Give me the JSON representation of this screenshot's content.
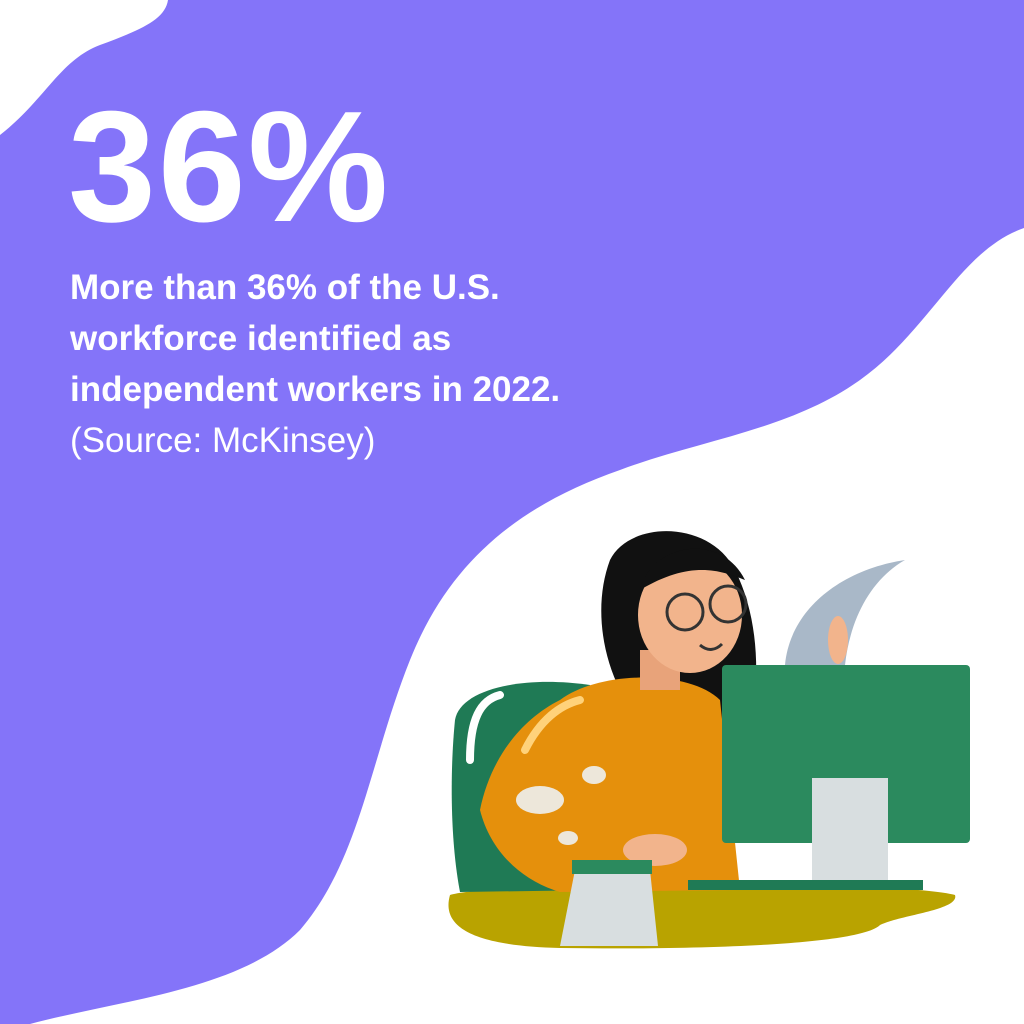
{
  "headline": "36%",
  "body_lines": [
    "More than 36% of the U.S.",
    "workforce identified as",
    "independent workers in 2022."
  ],
  "source": "(Source: McKinsey)",
  "colors": {
    "background_purple": "#8474F9",
    "white": "#FFFFFF",
    "sweater_orange": "#E5900C",
    "monitor_green": "#2B8A5E",
    "chair_green": "#1F7A55",
    "desk_olive": "#B9A300"
  },
  "illustration": "woman-at-computer-illustration"
}
